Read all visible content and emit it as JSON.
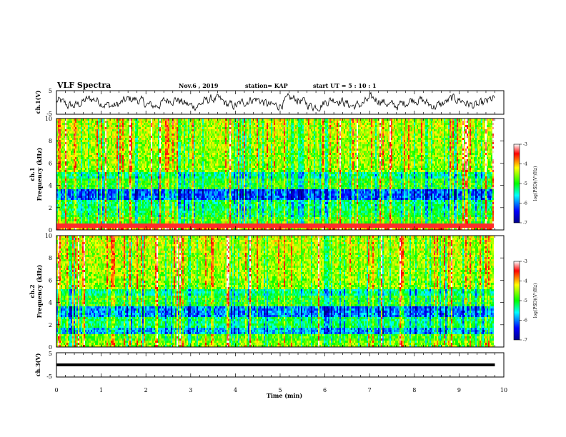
{
  "header": {
    "title": "VLF Spectra",
    "date": "Nov.6 , 2019",
    "station": "station= KAP",
    "start": "start UT = 5 : 10 : 1"
  },
  "chart_data": {
    "type": "heatmap",
    "x_axis": {
      "label": "Time (min)",
      "range": [
        0,
        10
      ],
      "ticks": [
        "0",
        "1",
        "2",
        "3",
        "4",
        "5",
        "6",
        "7",
        "8",
        "9",
        "10"
      ],
      "data_end": 9.8
    },
    "panels": [
      {
        "id": "ch1-waveform",
        "type": "line",
        "ylabel": "ch.1(V)",
        "ylim": [
          -5,
          5
        ],
        "yticks": [
          "5",
          "-5"
        ],
        "color": "#000000"
      },
      {
        "id": "ch1-spectrogram",
        "type": "heatmap",
        "ylabel_top": "ch.1",
        "ylabel": "Frequency (kHz)",
        "ylim": [
          0,
          10
        ],
        "yticks": [
          "0",
          "2",
          "4",
          "6",
          "8",
          "10"
        ],
        "colorbar": {
          "label": "log(PSD)(V²/Hz)",
          "range": [
            -7,
            -3
          ],
          "ticks": [
            "-3",
            "-4",
            "-5",
            "-6",
            "-7"
          ],
          "colors": [
            "#00008b",
            "#0000ff",
            "#00ffff",
            "#00ff00",
            "#ffff00",
            "#ff0000",
            "#ffffff"
          ]
        }
      },
      {
        "id": "ch2-spectrogram",
        "type": "heatmap",
        "ylabel_top": "ch.2",
        "ylabel": "Frequency (kHz)",
        "ylim": [
          0,
          10
        ],
        "yticks": [
          "0",
          "2",
          "4",
          "6",
          "8",
          "10"
        ],
        "colorbar": {
          "label": "log(PSD)(V²/Hz)",
          "range": [
            -7,
            -3
          ],
          "ticks": [
            "-3",
            "-4",
            "-5",
            "-6",
            "-7"
          ],
          "colors": [
            "#00008b",
            "#0000ff",
            "#00ffff",
            "#00ff00",
            "#ffff00",
            "#ff0000",
            "#ffffff"
          ]
        }
      },
      {
        "id": "ch3-waveform",
        "type": "line",
        "ylabel": "ch.3(V)",
        "ylim": [
          -5,
          5
        ],
        "yticks": [
          "5",
          "-5"
        ],
        "constant_value": 0,
        "color": "#000000"
      }
    ]
  }
}
